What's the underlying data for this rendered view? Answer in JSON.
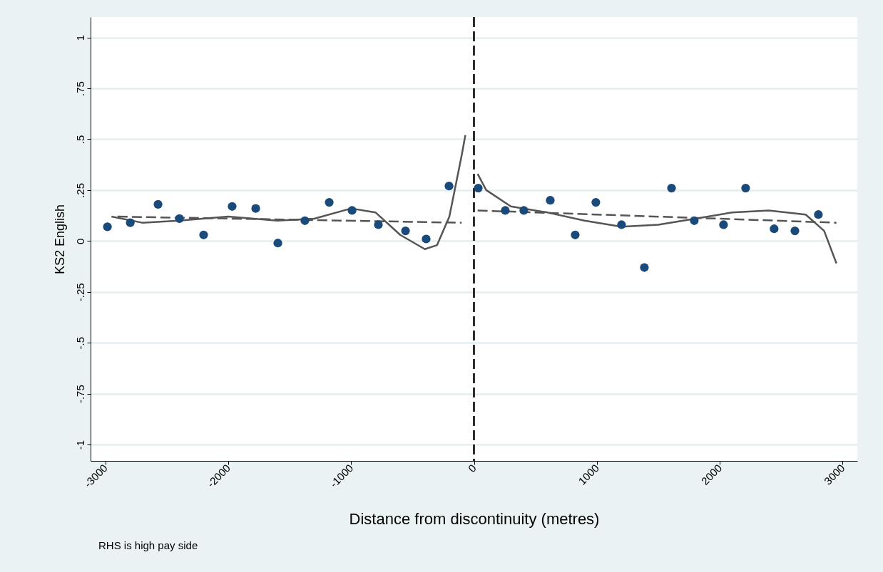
{
  "chart_data": {
    "type": "scatter",
    "xlabel": "Distance from discontinuity (metres)",
    "ylabel": "KS2 English",
    "xlim": [
      -3120,
      3120
    ],
    "xticks": [
      -3000,
      -2000,
      -1000,
      0,
      1000,
      2000,
      3000
    ],
    "ylim": [
      -1.08,
      1.1
    ],
    "yticks": [
      {
        "value": -1,
        "label": "-1"
      },
      {
        "value": -0.75,
        "label": "-.75"
      },
      {
        "value": -0.5,
        "label": "-.5"
      },
      {
        "value": -0.25,
        "label": "-.25"
      },
      {
        "value": 0,
        "label": "0"
      },
      {
        "value": 0.25,
        "label": ".25"
      },
      {
        "value": 0.5,
        "label": ".5"
      },
      {
        "value": 0.75,
        "label": ".75"
      },
      {
        "value": 1,
        "label": "1"
      }
    ],
    "grid": "y",
    "marker": "circle",
    "annotations": [
      "RHS is high pay side"
    ],
    "ref_lines": [
      {
        "axis": "x",
        "value": 0,
        "color": "#000000",
        "line_style": "dashed"
      }
    ],
    "series": [
      {
        "color": "#1a4a7a",
        "x": [
          -2983,
          -2797,
          -2571,
          -2397,
          -2200,
          -1968,
          -1776,
          -1596,
          -1376,
          -1178,
          -992,
          -778,
          -557,
          -389,
          -203,
          35,
          255,
          406,
          621,
          824,
          992,
          1201,
          1387,
          1608,
          1793,
          2031,
          2211,
          2443,
          2612,
          2803
        ],
        "values": [
          0.07,
          0.09,
          0.18,
          0.11,
          0.03,
          0.17,
          0.16,
          -0.01,
          0.1,
          0.19,
          0.15,
          0.08,
          0.05,
          0.01,
          0.27,
          0.26,
          0.15,
          0.15,
          0.2,
          0.03,
          0.19,
          0.08,
          -0.13,
          0.26,
          0.1,
          0.08,
          0.26,
          0.06,
          0.05,
          0.13
        ]
      },
      {
        "type": "line",
        "color": "#555555",
        "line_style": "dashed",
        "marker": "none",
        "x": [
          -2900,
          -100
        ],
        "values": [
          0.12,
          0.09
        ]
      },
      {
        "type": "line",
        "color": "#555555",
        "line_style": "dashed",
        "marker": "none",
        "x": [
          30,
          2950
        ],
        "values": [
          0.15,
          0.09
        ]
      },
      {
        "type": "line",
        "color": "#555555",
        "line_style": "solid",
        "marker": "none",
        "x": [
          -2950,
          -2700,
          -2400,
          -2000,
          -1600,
          -1300,
          -1000,
          -800,
          -600,
          -400,
          -300,
          -200,
          -100,
          -70
        ],
        "values": [
          0.12,
          0.09,
          0.1,
          0.12,
          0.1,
          0.11,
          0.16,
          0.14,
          0.03,
          -0.04,
          -0.02,
          0.12,
          0.42,
          0.52
        ]
      },
      {
        "type": "line",
        "color": "#555555",
        "line_style": "solid",
        "marker": "none",
        "x": [
          30,
          100,
          300,
          600,
          900,
          1200,
          1500,
          1800,
          2100,
          2400,
          2700,
          2850,
          2950
        ],
        "values": [
          0.33,
          0.25,
          0.17,
          0.14,
          0.1,
          0.07,
          0.08,
          0.11,
          0.14,
          0.15,
          0.13,
          0.05,
          -0.11
        ]
      }
    ]
  }
}
